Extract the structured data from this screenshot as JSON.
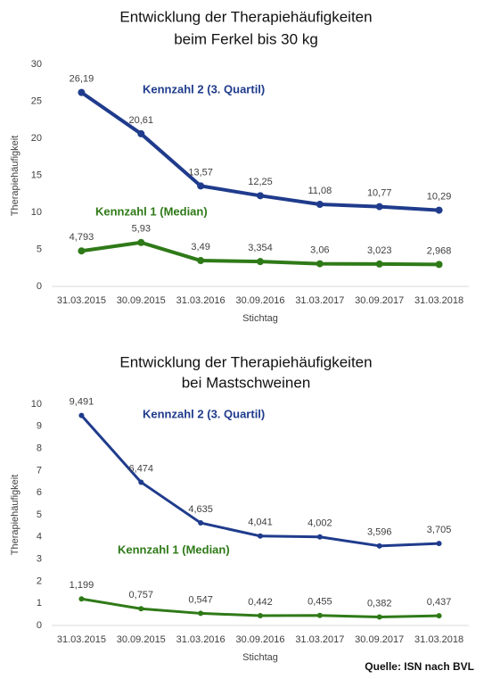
{
  "chart_data": [
    {
      "type": "line",
      "title": [
        "Entwicklung der Therapiehäufigkeiten",
        "beim Ferkel bis 30 kg"
      ],
      "x_label": "Stichtag",
      "y_label": "Therapiehäufigkeit",
      "categories": [
        "31.03.2015",
        "30.09.2015",
        "31.03.2016",
        "30.09.2016",
        "31.03.2017",
        "30.09.2017",
        "31.03.2018"
      ],
      "ylim": [
        0,
        30
      ],
      "yticks": [
        0,
        5,
        10,
        15,
        20,
        25,
        30
      ],
      "series": [
        {
          "name": "Kennzahl 2 (3. Quartil)",
          "color": "#1f3b8c",
          "values": [
            26.19,
            20.61,
            13.57,
            12.25,
            11.08,
            10.77,
            10.29
          ],
          "value_labels": [
            "26,19",
            "20,61",
            "13,57",
            "12,25",
            "11,08",
            "10,77",
            "10,29"
          ]
        },
        {
          "name": "Kennzahl 1 (Median)",
          "color": "#2f7a18",
          "values": [
            4.793,
            5.93,
            3.49,
            3.354,
            3.06,
            3.023,
            2.968
          ],
          "value_labels": [
            "4,793",
            "5,93",
            "3,49",
            "3,354",
            "3,06",
            "3,023",
            "2,968"
          ]
        }
      ]
    },
    {
      "type": "line",
      "title": [
        "Entwicklung der Therapiehäufigkeiten",
        "bei Mastschweinen"
      ],
      "x_label": "Stichtag",
      "y_label": "Therapiehäufigkeit",
      "categories": [
        "31.03.2015",
        "30.09.2015",
        "31.03.2016",
        "30.09.2016",
        "31.03.2017",
        "30.09.2017",
        "31.03.2018"
      ],
      "ylim": [
        0,
        10
      ],
      "yticks": [
        0,
        1,
        2,
        3,
        4,
        5,
        6,
        7,
        8,
        9,
        10
      ],
      "series": [
        {
          "name": "Kennzahl 2 (3. Quartil)",
          "color": "#1f3b8c",
          "values": [
            9.491,
            6.474,
            4.635,
            4.041,
            4.002,
            3.596,
            3.705
          ],
          "value_labels": [
            "9,491",
            "6,474",
            "4,635",
            "4,041",
            "4,002",
            "3,596",
            "3,705"
          ]
        },
        {
          "name": "Kennzahl 1 (Median)",
          "color": "#2f7a18",
          "values": [
            1.199,
            0.757,
            0.547,
            0.442,
            0.455,
            0.382,
            0.437
          ],
          "value_labels": [
            "1,199",
            "0,757",
            "0,547",
            "0,442",
            "0,455",
            "0,382",
            "0,437"
          ]
        }
      ]
    }
  ],
  "source": "Quelle: ISN nach BVL"
}
